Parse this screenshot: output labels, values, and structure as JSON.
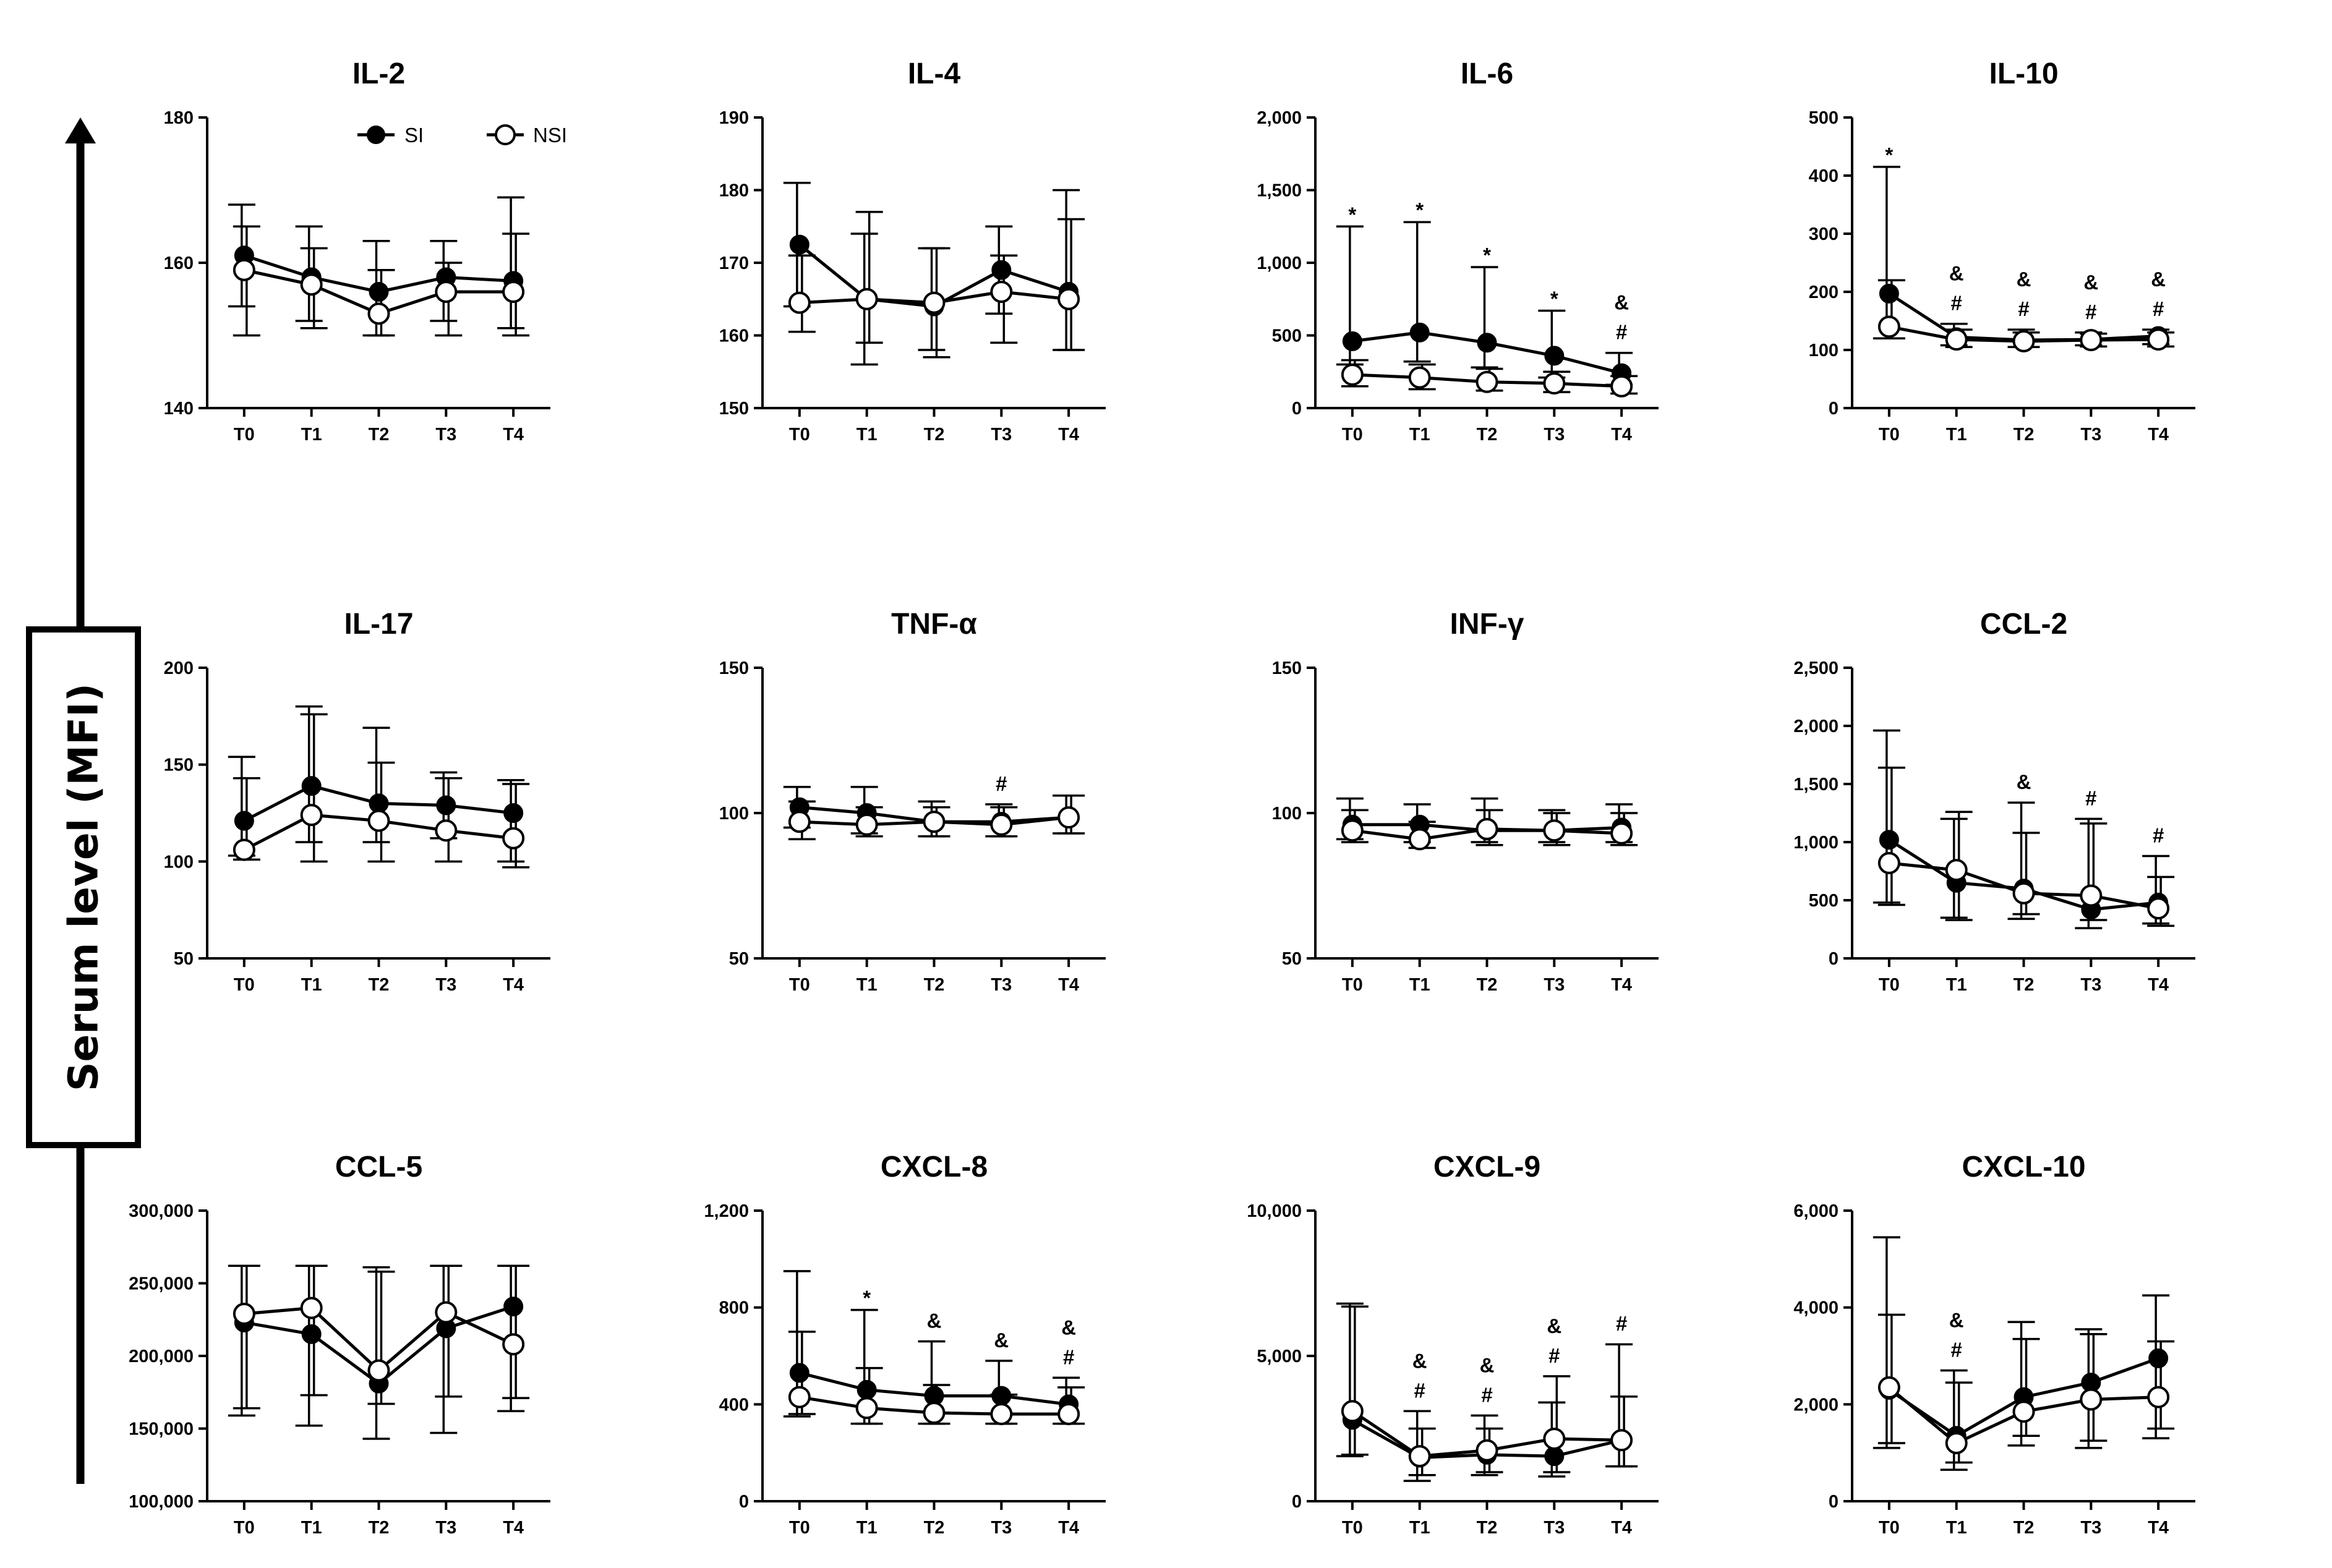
{
  "figure": {
    "y_axis_label": "Serum level (MFI)",
    "legend": [
      {
        "label": "SI",
        "marker": "filled-circle",
        "color": "#000000"
      },
      {
        "label": "NSI",
        "marker": "open-circle",
        "color": "#000000"
      }
    ]
  },
  "chart_data": [
    {
      "type": "line",
      "title": "IL-2",
      "categories": [
        "T0",
        "T1",
        "T2",
        "T3",
        "T4"
      ],
      "ylim": [
        140,
        180
      ],
      "yticks": [
        140,
        160,
        180
      ],
      "ytick_labels": [
        "140",
        "160",
        "180"
      ],
      "series": [
        {
          "name": "SI",
          "values": [
            161,
            158,
            156,
            158,
            157.5
          ],
          "upper": [
            168,
            165,
            163,
            163,
            169
          ],
          "lower": [
            154,
            152,
            150,
            152,
            151
          ]
        },
        {
          "name": "NSI",
          "values": [
            159,
            157,
            153,
            156,
            156
          ],
          "upper": [
            165,
            162,
            159,
            160,
            164
          ],
          "lower": [
            150,
            151,
            150,
            150,
            150
          ]
        }
      ],
      "annotations": []
    },
    {
      "type": "line",
      "title": "IL-4",
      "categories": [
        "T0",
        "T1",
        "T2",
        "T3",
        "T4"
      ],
      "ylim": [
        150,
        190
      ],
      "yticks": [
        150,
        160,
        170,
        180,
        190
      ],
      "ytick_labels": [
        "150",
        "160",
        "170",
        "180",
        "190"
      ],
      "series": [
        {
          "name": "SI",
          "values": [
            172.5,
            165,
            164,
            169,
            166
          ],
          "upper": [
            181,
            174,
            172,
            175,
            180
          ],
          "lower": [
            164,
            156,
            158,
            163,
            158
          ]
        },
        {
          "name": "NSI",
          "values": [
            164.5,
            165,
            164.5,
            166,
            165
          ],
          "upper": [
            171,
            177,
            172,
            171,
            176
          ],
          "lower": [
            160.5,
            159,
            157,
            159,
            158
          ]
        }
      ],
      "annotations": []
    },
    {
      "type": "line",
      "title": "IL-6",
      "categories": [
        "T0",
        "T1",
        "T2",
        "T3",
        "T4"
      ],
      "ylim": [
        0,
        2000
      ],
      "yticks": [
        0,
        500,
        1000,
        1500,
        2000
      ],
      "ytick_labels": [
        "0",
        "500",
        "1,000",
        "1,500",
        "2,000"
      ],
      "series": [
        {
          "name": "SI",
          "values": [
            460,
            520,
            450,
            360,
            240
          ],
          "upper": [
            1250,
            1280,
            970,
            670,
            380
          ],
          "lower": [
            300,
            320,
            280,
            210,
            160
          ]
        },
        {
          "name": "NSI",
          "values": [
            230,
            210,
            180,
            170,
            150
          ],
          "upper": [
            330,
            300,
            270,
            250,
            220
          ],
          "lower": [
            150,
            130,
            120,
            110,
            100
          ]
        }
      ],
      "annotations": [
        {
          "x": "T0",
          "marks": [
            "*"
          ]
        },
        {
          "x": "T1",
          "marks": [
            "*"
          ]
        },
        {
          "x": "T2",
          "marks": [
            "*"
          ]
        },
        {
          "x": "T3",
          "marks": [
            "*"
          ]
        },
        {
          "x": "T4",
          "marks": [
            "&",
            "#"
          ]
        }
      ]
    },
    {
      "type": "line",
      "title": "IL-10",
      "categories": [
        "T0",
        "T1",
        "T2",
        "T3",
        "T4"
      ],
      "ylim": [
        0,
        500
      ],
      "yticks": [
        0,
        100,
        200,
        300,
        400,
        500
      ],
      "ytick_labels": [
        "0",
        "100",
        "200",
        "300",
        "400",
        "500"
      ],
      "series": [
        {
          "name": "SI",
          "values": [
            197,
            122,
            117,
            118,
            124
          ],
          "upper": [
            415,
            145,
            135,
            130,
            135
          ],
          "lower": [
            120,
            108,
            105,
            108,
            110
          ]
        },
        {
          "name": "NSI",
          "values": [
            140,
            118,
            115,
            117,
            118
          ],
          "upper": [
            220,
            135,
            130,
            128,
            130
          ],
          "lower": [
            120,
            105,
            105,
            106,
            106
          ]
        }
      ],
      "annotations": [
        {
          "x": "T0",
          "marks": [
            "*"
          ]
        },
        {
          "x": "T1",
          "marks": [
            "&",
            "#"
          ]
        },
        {
          "x": "T2",
          "marks": [
            "&",
            "#"
          ]
        },
        {
          "x": "T3",
          "marks": [
            "&",
            "#"
          ]
        },
        {
          "x": "T4",
          "marks": [
            "&",
            "#"
          ]
        }
      ]
    },
    {
      "type": "line",
      "title": "IL-17",
      "categories": [
        "T0",
        "T1",
        "T2",
        "T3",
        "T4"
      ],
      "ylim": [
        50,
        200
      ],
      "yticks": [
        50,
        100,
        150,
        200
      ],
      "ytick_labels": [
        "50",
        "100",
        "150",
        "200"
      ],
      "series": [
        {
          "name": "SI",
          "values": [
            121,
            139,
            130,
            129,
            125
          ],
          "upper": [
            154,
            180,
            169,
            146,
            142
          ],
          "lower": [
            103,
            110,
            110,
            112,
            100
          ]
        },
        {
          "name": "NSI",
          "values": [
            106,
            124,
            121,
            116,
            112
          ],
          "upper": [
            143,
            176,
            151,
            143,
            140
          ],
          "lower": [
            101,
            100,
            100,
            100,
            97
          ]
        }
      ],
      "annotations": []
    },
    {
      "type": "line",
      "title": "TNF-α",
      "categories": [
        "T0",
        "T1",
        "T2",
        "T3",
        "T4"
      ],
      "ylim": [
        50,
        150
      ],
      "yticks": [
        50,
        100,
        150
      ],
      "ytick_labels": [
        "50",
        "100",
        "150"
      ],
      "series": [
        {
          "name": "SI",
          "values": [
            102,
            100,
            97,
            97,
            98.5
          ],
          "upper": [
            109,
            109,
            104,
            103,
            106
          ],
          "lower": [
            95,
            93,
            92,
            92,
            93
          ]
        },
        {
          "name": "NSI",
          "values": [
            97,
            96,
            97,
            96,
            98.5
          ],
          "upper": [
            104,
            102,
            102,
            102,
            106
          ],
          "lower": [
            91,
            92,
            92,
            92,
            93
          ]
        }
      ],
      "annotations": [
        {
          "x": "T3",
          "marks": [
            "#"
          ]
        }
      ]
    },
    {
      "type": "line",
      "title": "INF-γ",
      "categories": [
        "T0",
        "T1",
        "T2",
        "T3",
        "T4"
      ],
      "ylim": [
        50,
        150
      ],
      "yticks": [
        50,
        100,
        150
      ],
      "ytick_labels": [
        "50",
        "100",
        "150"
      ],
      "series": [
        {
          "name": "SI",
          "values": [
            96,
            96,
            94,
            94,
            95
          ],
          "upper": [
            105,
            103,
            105,
            101,
            103
          ],
          "lower": [
            91,
            90,
            90,
            90,
            90
          ]
        },
        {
          "name": "NSI",
          "values": [
            94,
            91,
            94.5,
            94,
            93
          ],
          "upper": [
            101,
            97,
            101,
            100,
            100
          ],
          "lower": [
            90,
            88,
            89,
            89,
            89
          ]
        }
      ],
      "annotations": []
    },
    {
      "type": "line",
      "title": "CCL-2",
      "categories": [
        "T0",
        "T1",
        "T2",
        "T3",
        "T4"
      ],
      "ylim": [
        0,
        2500
      ],
      "yticks": [
        0,
        500,
        1000,
        1500,
        2000,
        2500
      ],
      "ytick_labels": [
        "0",
        "500",
        "1,000",
        "1,500",
        "2,000",
        "2,500"
      ],
      "series": [
        {
          "name": "SI",
          "values": [
            1020,
            650,
            600,
            420,
            480
          ],
          "upper": [
            1960,
            1200,
            1340,
            1200,
            880
          ],
          "lower": [
            480,
            350,
            340,
            260,
            300
          ]
        },
        {
          "name": "NSI",
          "values": [
            820,
            760,
            560,
            540,
            430
          ],
          "upper": [
            1640,
            1260,
            1080,
            1160,
            700
          ],
          "lower": [
            460,
            330,
            380,
            330,
            280
          ]
        }
      ],
      "annotations": [
        {
          "x": "T2",
          "marks": [
            "&"
          ]
        },
        {
          "x": "T3",
          "marks": [
            "#"
          ]
        },
        {
          "x": "T4",
          "marks": [
            "#"
          ]
        }
      ]
    },
    {
      "type": "line",
      "title": "CCL-5",
      "categories": [
        "T0",
        "T1",
        "T2",
        "T3",
        "T4"
      ],
      "ylim": [
        100000,
        300000
      ],
      "yticks": [
        100000,
        150000,
        200000,
        250000,
        300000
      ],
      "ytick_labels": [
        "100,000",
        "150,000",
        "200,000",
        "250,000",
        "300,000"
      ],
      "series": [
        {
          "name": "SI",
          "values": [
            223000,
            215000,
            181000,
            219000,
            234000
          ],
          "upper": [
            262000,
            262000,
            261000,
            262000,
            262000
          ],
          "lower": [
            159000,
            152000,
            143000,
            147000,
            162000
          ]
        },
        {
          "name": "NSI",
          "values": [
            229000,
            233000,
            190000,
            230000,
            208000
          ],
          "upper": [
            262000,
            262000,
            258000,
            262000,
            262000
          ],
          "lower": [
            164000,
            173000,
            167000,
            172000,
            171000
          ]
        }
      ],
      "annotations": []
    },
    {
      "type": "line",
      "title": "CXCL-8",
      "categories": [
        "T0",
        "T1",
        "T2",
        "T3",
        "T4"
      ],
      "ylim": [
        0,
        1200
      ],
      "yticks": [
        0,
        400,
        800,
        1200
      ],
      "ytick_labels": [
        "0",
        "400",
        "800",
        "1,200"
      ],
      "series": [
        {
          "name": "SI",
          "values": [
            530,
            460,
            435,
            435,
            400
          ],
          "upper": [
            950,
            790,
            660,
            580,
            510
          ],
          "lower": [
            350,
            320,
            320,
            320,
            320
          ]
        },
        {
          "name": "NSI",
          "values": [
            430,
            385,
            365,
            360,
            360
          ],
          "upper": [
            700,
            550,
            480,
            440,
            470
          ],
          "lower": [
            360,
            320,
            320,
            320,
            320
          ]
        }
      ],
      "annotations": [
        {
          "x": "T1",
          "marks": [
            "*"
          ]
        },
        {
          "x": "T2",
          "marks": [
            "&"
          ]
        },
        {
          "x": "T3",
          "marks": [
            "&"
          ]
        },
        {
          "x": "T4",
          "marks": [
            "&",
            "#"
          ]
        }
      ]
    },
    {
      "type": "line",
      "title": "CXCL-9",
      "categories": [
        "T0",
        "T1",
        "T2",
        "T3",
        "T4"
      ],
      "ylim": [
        0,
        10000
      ],
      "yticks": [
        0,
        5000,
        10000
      ],
      "ytick_labels": [
        "0",
        "5,000",
        "10,000"
      ],
      "series": [
        {
          "name": "SI",
          "values": [
            2800,
            1500,
            1600,
            1550,
            2100
          ],
          "upper": [
            6800,
            3100,
            2950,
            3400,
            5400
          ],
          "lower": [
            1550,
            700,
            900,
            850,
            1200
          ]
        },
        {
          "name": "NSI",
          "values": [
            3100,
            1550,
            1750,
            2150,
            2100
          ],
          "upper": [
            6700,
            2500,
            2500,
            4300,
            3600
          ],
          "lower": [
            1600,
            900,
            1000,
            1000,
            1200
          ]
        }
      ],
      "annotations": [
        {
          "x": "T1",
          "marks": [
            "&",
            "#"
          ]
        },
        {
          "x": "T2",
          "marks": [
            "&",
            "#"
          ]
        },
        {
          "x": "T3",
          "marks": [
            "&",
            "#"
          ]
        },
        {
          "x": "T4",
          "marks": [
            "#"
          ]
        }
      ]
    },
    {
      "type": "line",
      "title": "CXCL-10",
      "categories": [
        "T0",
        "T1",
        "T2",
        "T3",
        "T4"
      ],
      "ylim": [
        0,
        6000
      ],
      "yticks": [
        0,
        2000,
        4000,
        6000
      ],
      "ytick_labels": [
        "0",
        "2,000",
        "4,000",
        "6,000"
      ],
      "series": [
        {
          "name": "SI",
          "values": [
            2300,
            1350,
            2150,
            2450,
            2950
          ],
          "upper": [
            5450,
            2700,
            3700,
            3550,
            4250
          ],
          "lower": [
            1100,
            650,
            1150,
            1100,
            1300
          ]
        },
        {
          "name": "NSI",
          "values": [
            2350,
            1200,
            1850,
            2100,
            2150
          ],
          "upper": [
            3850,
            2450,
            3350,
            3450,
            3300
          ],
          "lower": [
            1200,
            800,
            1350,
            1250,
            1500
          ]
        }
      ],
      "annotations": [
        {
          "x": "T1",
          "marks": [
            "&",
            "#"
          ]
        }
      ]
    }
  ]
}
